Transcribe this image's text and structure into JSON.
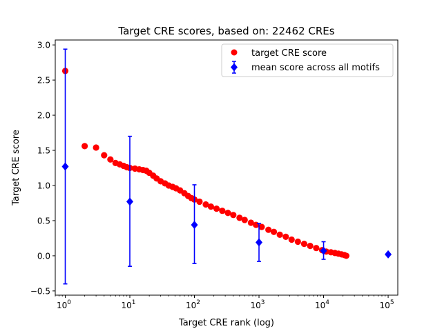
{
  "chart_data": {
    "type": "scatter",
    "title": "Target CRE scores, based on: 22462 CREs",
    "xlabel": "Target CRE rank (log)",
    "ylabel": "Target CRE score",
    "xscale": "log",
    "xlim": [
      0.7,
      141000
    ],
    "ylim": [
      -0.56,
      3.07
    ],
    "x_ticks": [
      1,
      10,
      100,
      1000,
      10000,
      100000
    ],
    "x_tick_labels": [
      {
        "base": "10",
        "exp": "0"
      },
      {
        "base": "10",
        "exp": "1"
      },
      {
        "base": "10",
        "exp": "2"
      },
      {
        "base": "10",
        "exp": "3"
      },
      {
        "base": "10",
        "exp": "4"
      },
      {
        "base": "10",
        "exp": "5"
      }
    ],
    "y_ticks": [
      -0.5,
      0.0,
      0.5,
      1.0,
      1.5,
      2.0,
      2.5,
      3.0
    ],
    "y_tick_labels": [
      "−0.5",
      "0.0",
      "0.5",
      "1.0",
      "1.5",
      "2.0",
      "2.5",
      "3.0"
    ],
    "grid": false,
    "legend_position": "top-right",
    "colors": {
      "target": "#ff0000",
      "mean": "#0000ff"
    },
    "series": [
      {
        "name": "target CRE score",
        "marker": "circle",
        "color": "#ff0000",
        "points": [
          [
            1,
            2.63
          ],
          [
            2,
            1.56
          ],
          [
            3,
            1.54
          ],
          [
            4,
            1.43
          ],
          [
            5,
            1.37
          ],
          [
            6,
            1.32
          ],
          [
            7,
            1.3
          ],
          [
            8,
            1.28
          ],
          [
            9,
            1.26
          ],
          [
            10,
            1.25
          ],
          [
            12,
            1.24
          ],
          [
            14,
            1.23
          ],
          [
            16,
            1.22
          ],
          [
            18,
            1.21
          ],
          [
            20,
            1.18
          ],
          [
            23,
            1.14
          ],
          [
            26,
            1.1
          ],
          [
            30,
            1.06
          ],
          [
            35,
            1.03
          ],
          [
            40,
            1.0
          ],
          [
            46,
            0.98
          ],
          [
            52,
            0.96
          ],
          [
            60,
            0.93
          ],
          [
            70,
            0.89
          ],
          [
            80,
            0.85
          ],
          [
            90,
            0.82
          ],
          [
            100,
            0.8
          ],
          [
            120,
            0.77
          ],
          [
            150,
            0.73
          ],
          [
            180,
            0.7
          ],
          [
            220,
            0.67
          ],
          [
            270,
            0.64
          ],
          [
            330,
            0.61
          ],
          [
            400,
            0.58
          ],
          [
            500,
            0.54
          ],
          [
            600,
            0.51
          ],
          [
            750,
            0.47
          ],
          [
            900,
            0.44
          ],
          [
            1100,
            0.41
          ],
          [
            1400,
            0.37
          ],
          [
            1700,
            0.34
          ],
          [
            2100,
            0.3
          ],
          [
            2600,
            0.27
          ],
          [
            3200,
            0.23
          ],
          [
            4000,
            0.2
          ],
          [
            5000,
            0.17
          ],
          [
            6200,
            0.14
          ],
          [
            7700,
            0.11
          ],
          [
            9500,
            0.08
          ],
          [
            11000,
            0.06
          ],
          [
            13000,
            0.05
          ],
          [
            15000,
            0.04
          ],
          [
            17000,
            0.03
          ],
          [
            19000,
            0.02
          ],
          [
            21000,
            0.01
          ],
          [
            22462,
            0.0
          ]
        ]
      },
      {
        "name": "mean score across all motifs",
        "marker": "diamond",
        "color": "#0000ff",
        "errorbars": true,
        "points": [
          {
            "x": 1,
            "y": 1.27,
            "ylo": -0.4,
            "yhi": 2.94
          },
          {
            "x": 10,
            "y": 0.77,
            "ylo": -0.15,
            "yhi": 1.7
          },
          {
            "x": 100,
            "y": 0.44,
            "ylo": -0.11,
            "yhi": 1.01
          },
          {
            "x": 1000,
            "y": 0.19,
            "ylo": -0.08,
            "yhi": 0.46
          },
          {
            "x": 10000,
            "y": 0.07,
            "ylo": -0.05,
            "yhi": 0.2
          },
          {
            "x": 100000,
            "y": 0.02,
            "ylo": 0.02,
            "yhi": 0.02
          }
        ]
      }
    ]
  }
}
